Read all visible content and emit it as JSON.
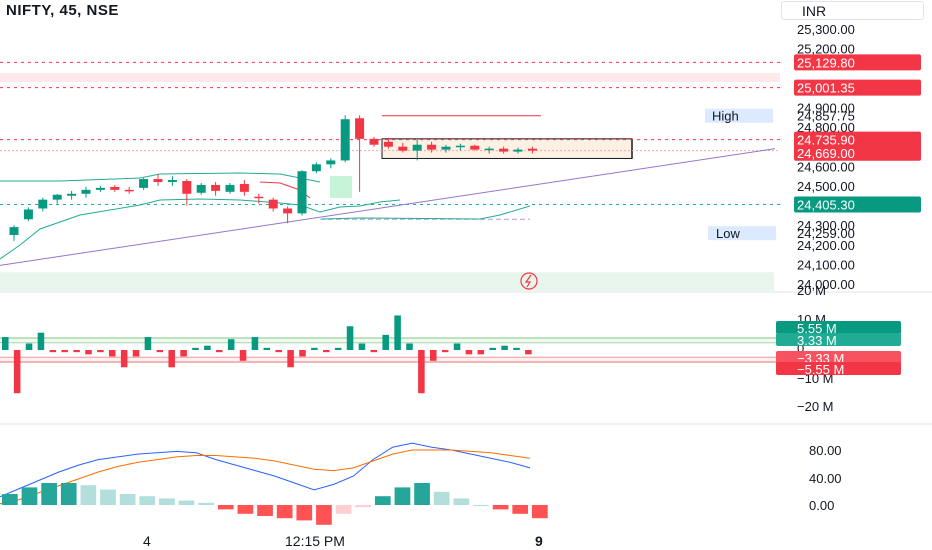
{
  "header": {
    "title": "NIFTY, 45, NSE",
    "currency": "INR"
  },
  "colors": {
    "up": "#089981",
    "down": "#f23645",
    "macd": "#2962ff",
    "signal": "#ff6d00",
    "hist_up": "#26a69a",
    "hist_up_light": "#b2dfdb",
    "hist_down": "#ff5252",
    "hist_down_light": "#ffcdd2"
  },
  "price_axis": {
    "ticks": [
      "25,300.00",
      "25,200.00",
      "24,900.00",
      "24,800.00",
      "24,600.00",
      "24,500.00",
      "24,300.00",
      "24,200.00",
      "24,100.00",
      "24,000.00"
    ]
  },
  "price_labels": [
    {
      "text": "25,129.80",
      "kind": "red"
    },
    {
      "text": "25,001.35",
      "kind": "red"
    },
    {
      "text": "24,857.75",
      "kind": "high"
    },
    {
      "text": "24,735.90",
      "kind": "red"
    },
    {
      "text": "24,669.00",
      "kind": "red"
    },
    {
      "text": "24,405.30",
      "kind": "green"
    },
    {
      "text": "24,259.00",
      "kind": "low"
    }
  ],
  "high_label": "High",
  "low_label": "Low",
  "volume_axis": {
    "ticks": [
      "20 M",
      "10 M",
      "0",
      "−10 M",
      "−20 M"
    ]
  },
  "volume_labels": [
    {
      "text": "5.55 M",
      "kind": "green"
    },
    {
      "text": "3.33 M",
      "kind": "lightgreen"
    },
    {
      "text": "−3.33 M",
      "kind": "lightred"
    },
    {
      "text": "−5.55 M",
      "kind": "red"
    }
  ],
  "osc_axis": {
    "ticks": [
      "80.00",
      "40.00",
      "0.00"
    ]
  },
  "time_axis": {
    "ticks": [
      "4",
      "12:15 PM",
      "9"
    ]
  },
  "chart_data": {
    "type": "candlestick",
    "symbol": "NIFTY",
    "interval": "45",
    "exchange": "NSE",
    "price_range": [
      24000,
      25300
    ],
    "candles": [
      {
        "o": 24250,
        "h": 24300,
        "l": 24220,
        "c": 24290
      },
      {
        "o": 24330,
        "h": 24390,
        "l": 24320,
        "c": 24380
      },
      {
        "o": 24385,
        "h": 24440,
        "l": 24370,
        "c": 24430
      },
      {
        "o": 24430,
        "h": 24460,
        "l": 24410,
        "c": 24455
      },
      {
        "o": 24450,
        "h": 24475,
        "l": 24430,
        "c": 24460
      },
      {
        "o": 24460,
        "h": 24495,
        "l": 24440,
        "c": 24480
      },
      {
        "o": 24480,
        "h": 24500,
        "l": 24470,
        "c": 24490
      },
      {
        "o": 24495,
        "h": 24505,
        "l": 24470,
        "c": 24480
      },
      {
        "o": 24480,
        "h": 24495,
        "l": 24460,
        "c": 24475
      },
      {
        "o": 24490,
        "h": 24540,
        "l": 24480,
        "c": 24535
      },
      {
        "o": 24535,
        "h": 24560,
        "l": 24500,
        "c": 24520
      },
      {
        "o": 24520,
        "h": 24550,
        "l": 24500,
        "c": 24530
      },
      {
        "o": 24525,
        "h": 24535,
        "l": 24400,
        "c": 24460
      },
      {
        "o": 24465,
        "h": 24515,
        "l": 24455,
        "c": 24505
      },
      {
        "o": 24505,
        "h": 24520,
        "l": 24450,
        "c": 24475
      },
      {
        "o": 24470,
        "h": 24515,
        "l": 24460,
        "c": 24505
      },
      {
        "o": 24510,
        "h": 24530,
        "l": 24450,
        "c": 24470
      },
      {
        "o": 24445,
        "h": 24460,
        "l": 24410,
        "c": 24440
      },
      {
        "o": 24430,
        "h": 24440,
        "l": 24370,
        "c": 24385
      },
      {
        "o": 24385,
        "h": 24395,
        "l": 24310,
        "c": 24360
      },
      {
        "o": 24360,
        "h": 24580,
        "l": 24350,
        "c": 24575
      },
      {
        "o": 24575,
        "h": 24620,
        "l": 24565,
        "c": 24610
      },
      {
        "o": 24610,
        "h": 24640,
        "l": 24590,
        "c": 24630
      },
      {
        "o": 24630,
        "h": 24860,
        "l": 24620,
        "c": 24840
      },
      {
        "o": 24845,
        "h": 24860,
        "l": 24470,
        "c": 24740
      },
      {
        "o": 24740,
        "h": 24750,
        "l": 24700,
        "c": 24710
      },
      {
        "o": 24725,
        "h": 24745,
        "l": 24690,
        "c": 24700
      },
      {
        "o": 24700,
        "h": 24720,
        "l": 24670,
        "c": 24680
      },
      {
        "o": 24680,
        "h": 24735,
        "l": 24630,
        "c": 24710
      },
      {
        "o": 24710,
        "h": 24725,
        "l": 24670,
        "c": 24685
      },
      {
        "o": 24685,
        "h": 24710,
        "l": 24670,
        "c": 24700
      },
      {
        "o": 24700,
        "h": 24715,
        "l": 24680,
        "c": 24705
      },
      {
        "o": 24705,
        "h": 24710,
        "l": 24680,
        "c": 24685
      },
      {
        "o": 24685,
        "h": 24700,
        "l": 24665,
        "c": 24690
      },
      {
        "o": 24690,
        "h": 24700,
        "l": 24665,
        "c": 24675
      },
      {
        "o": 24675,
        "h": 24695,
        "l": 24665,
        "c": 24685
      },
      {
        "o": 24690,
        "h": 24700,
        "l": 24665,
        "c": 24680
      }
    ],
    "volume_delta_millions": [
      6,
      -20,
      3,
      8,
      -1,
      -1,
      -1,
      -2,
      -1,
      -3,
      -8,
      -3,
      6,
      -1,
      -8,
      -3,
      1,
      2,
      -1,
      5,
      -5,
      6,
      1,
      -1,
      -8,
      -3,
      1,
      -1,
      1,
      11,
      3,
      -1,
      7,
      16,
      3,
      -20,
      -5,
      -1,
      3,
      -2,
      -2,
      1,
      2,
      1,
      -2
    ],
    "macd_series": {
      "macd": [
        12,
        24,
        36,
        48,
        58,
        66,
        70,
        74,
        76,
        78,
        76,
        66,
        58,
        50,
        42,
        32,
        22,
        30,
        42,
        66,
        84,
        90,
        84,
        80,
        74,
        68,
        62,
        54
      ],
      "signal": [
        2,
        8,
        18,
        28,
        38,
        48,
        56,
        62,
        66,
        70,
        72,
        72,
        70,
        68,
        64,
        58,
        52,
        50,
        54,
        64,
        74,
        80,
        80,
        80,
        78,
        76,
        72,
        68
      ],
      "histogram": [
        5,
        8,
        10,
        10,
        9,
        7,
        5,
        4,
        3,
        2,
        1,
        -2,
        -4,
        -5,
        -6,
        -7,
        -9,
        -4,
        -1,
        4,
        8,
        10,
        6,
        3,
        0,
        -2,
        -4,
        -6
      ]
    },
    "levels": {
      "red_dashed": [
        25129.8,
        25001.35,
        24735.9
      ],
      "green_dashed": [
        24405.3
      ],
      "high": 24857.75,
      "low": 24259.0
    },
    "x_ticks": [
      "4",
      "12:15 PM",
      "9"
    ]
  }
}
